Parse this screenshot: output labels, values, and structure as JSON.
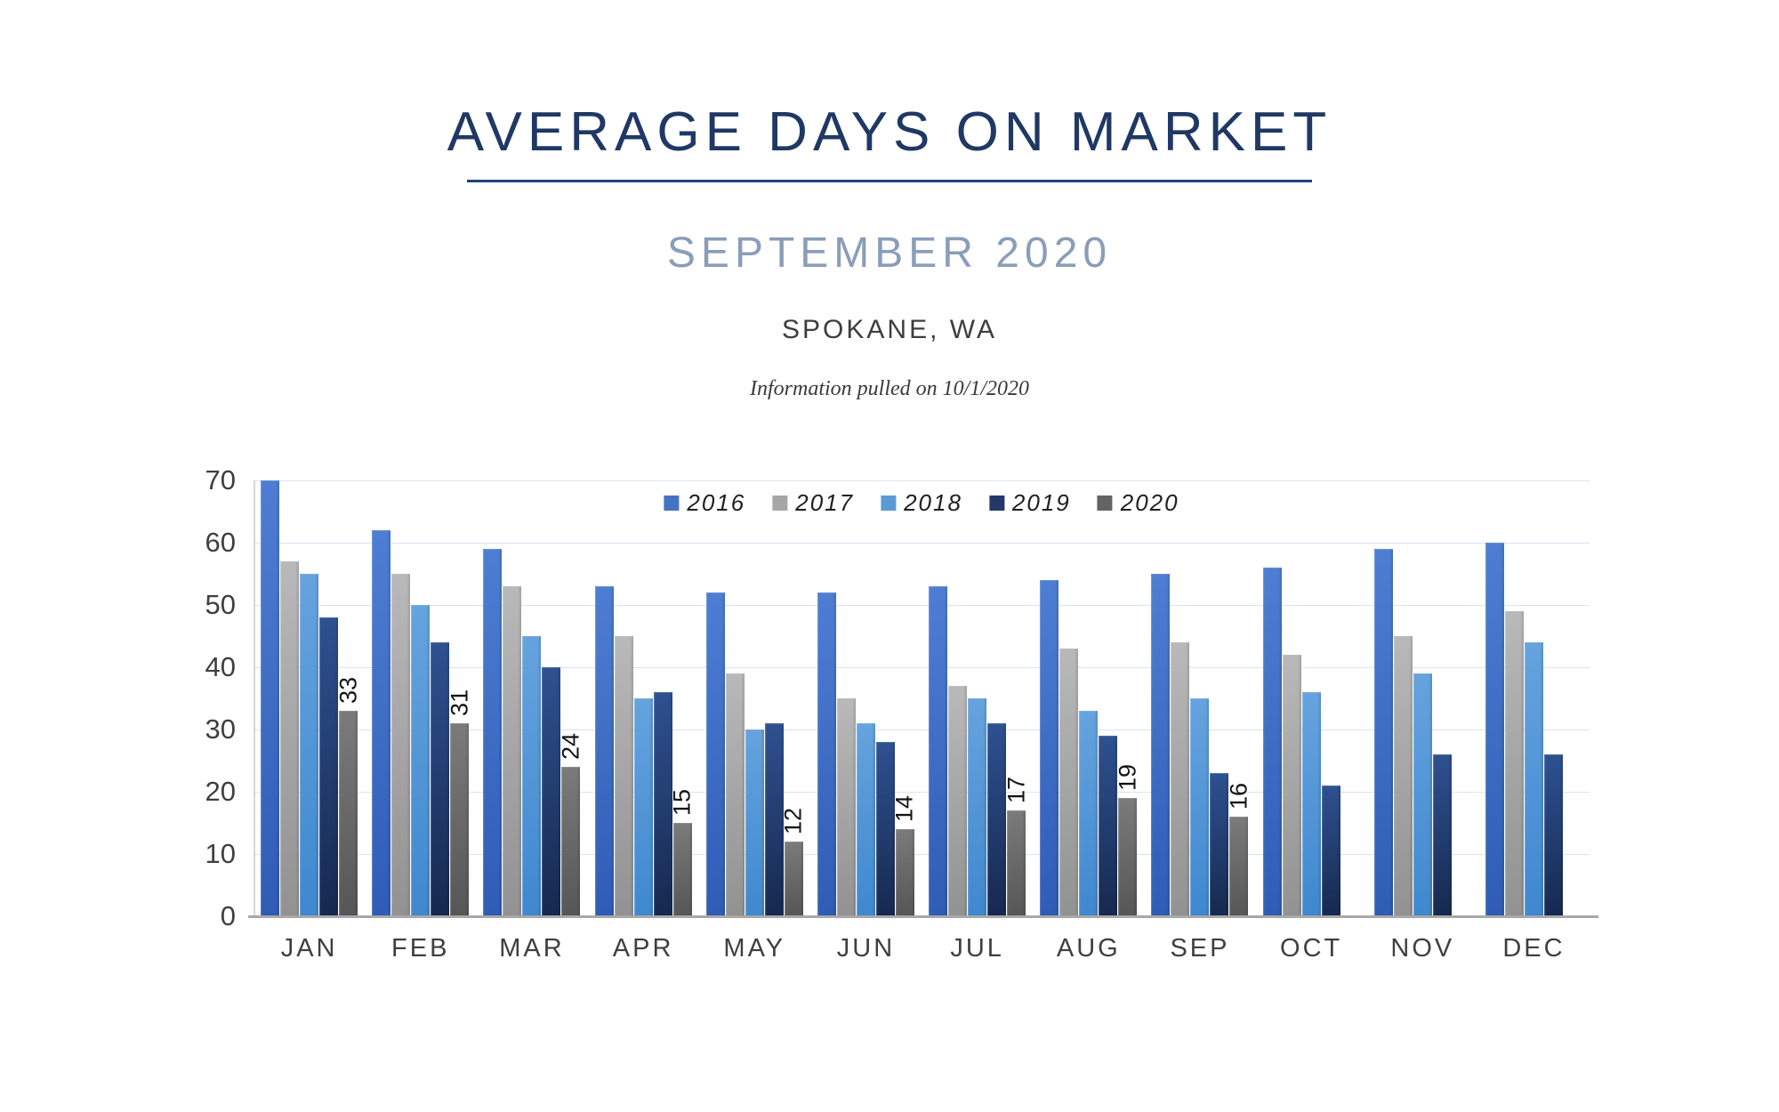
{
  "header": {
    "title": "AVERAGE DAYS ON MARKET",
    "subtitle": "SEPTEMBER 2020",
    "location": "SPOKANE, WA",
    "note": "Information pulled on 10/1/2020"
  },
  "colors": {
    "title_navy": "#1F3864",
    "subtitle_blue_gray": "#8A9DB9",
    "gridline": "#DAE3F3",
    "axis_line": "#A8A8A8",
    "tick_text": "#3F3F3F"
  },
  "chart_data": {
    "type": "bar",
    "title": "Average Days on Market by month, Spokane WA, 2016-2020",
    "categories": [
      "JAN",
      "FEB",
      "MAR",
      "APR",
      "MAY",
      "JUN",
      "JUL",
      "AUG",
      "SEP",
      "OCT",
      "NOV",
      "DEC"
    ],
    "series": [
      {
        "name": "2016",
        "swatch": "#4472C4",
        "gradient": [
          "#4E7ED3",
          "#2F5CB5"
        ],
        "values": [
          70,
          62,
          59,
          53,
          52,
          52,
          53,
          54,
          55,
          56,
          59,
          60
        ]
      },
      {
        "name": "2017",
        "swatch": "#A6A6A6",
        "gradient": [
          "#B9B9B9",
          "#929292"
        ],
        "values": [
          57,
          55,
          53,
          45,
          39,
          35,
          37,
          43,
          44,
          42,
          45,
          49
        ]
      },
      {
        "name": "2018",
        "swatch": "#5B9BD5",
        "gradient": [
          "#66A3DE",
          "#3F88CF"
        ],
        "values": [
          55,
          50,
          45,
          35,
          30,
          31,
          35,
          33,
          35,
          36,
          39,
          44
        ]
      },
      {
        "name": "2019",
        "swatch": "#24386B",
        "gradient": [
          "#2E5191",
          "#16294F"
        ],
        "values": [
          48,
          44,
          40,
          36,
          31,
          28,
          31,
          29,
          23,
          21,
          26,
          26
        ]
      },
      {
        "name": "2020",
        "swatch": "#636363",
        "gradient": [
          "#7B7B7B",
          "#565656"
        ],
        "values": [
          33,
          31,
          24,
          15,
          12,
          14,
          17,
          19,
          16,
          null,
          null,
          null
        ],
        "data_labels": true
      }
    ],
    "ylim": [
      0,
      70
    ],
    "ytick_step": 10,
    "xlabel": "",
    "ylabel": "",
    "grid": "horizontal",
    "legend_position": "top-center",
    "data_label_rotation": "vertical-bottom-to-top"
  }
}
